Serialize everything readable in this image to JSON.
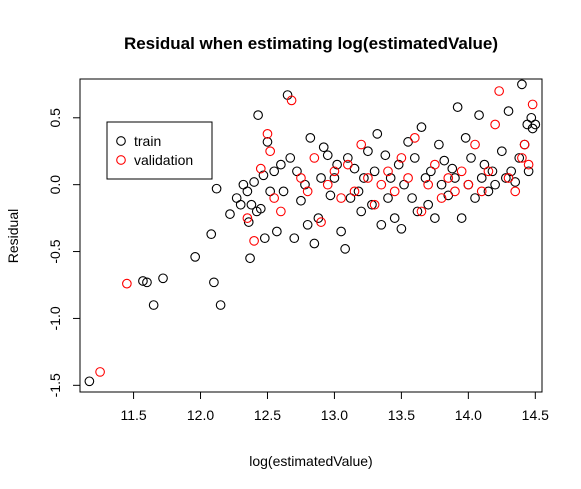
{
  "chart_data": {
    "type": "scatter",
    "title": "Residual when estimating log(estimatedValue)",
    "xlabel": "log(estimatedValue)",
    "ylabel": "Residual",
    "xlim": [
      11.1,
      14.55
    ],
    "ylim": [
      -1.55,
      0.79
    ],
    "xticks": [
      11.5,
      12.0,
      12.5,
      13.0,
      13.5,
      14.0,
      14.5
    ],
    "xtick_labels": [
      "11.5",
      "12.0",
      "12.5",
      "13.0",
      "13.5",
      "14.0",
      "14.5"
    ],
    "yticks": [
      -1.5,
      -1.0,
      -0.5,
      0.0,
      0.5
    ],
    "ytick_labels": [
      "-1.5",
      "-1.0",
      "-0.5",
      "0.0",
      "0.5"
    ],
    "grid": false,
    "legend": {
      "position": "top-left",
      "entries": [
        "train",
        "validation"
      ]
    },
    "series": [
      {
        "name": "train",
        "color": "#000000",
        "points": [
          [
            11.17,
            -1.47
          ],
          [
            11.57,
            -0.72
          ],
          [
            11.6,
            -0.73
          ],
          [
            11.65,
            -0.9
          ],
          [
            11.72,
            -0.7
          ],
          [
            11.96,
            -0.54
          ],
          [
            12.08,
            -0.37
          ],
          [
            12.1,
            -0.73
          ],
          [
            12.12,
            -0.03
          ],
          [
            12.15,
            -0.9
          ],
          [
            12.22,
            -0.22
          ],
          [
            12.27,
            -0.1
          ],
          [
            12.3,
            -0.15
          ],
          [
            12.32,
            0.0
          ],
          [
            12.35,
            -0.05
          ],
          [
            12.36,
            -0.28
          ],
          [
            12.37,
            -0.55
          ],
          [
            12.38,
            -0.15
          ],
          [
            12.4,
            0.02
          ],
          [
            12.42,
            -0.2
          ],
          [
            12.43,
            0.52
          ],
          [
            12.45,
            -0.18
          ],
          [
            12.47,
            0.07
          ],
          [
            12.48,
            -0.4
          ],
          [
            12.5,
            0.32
          ],
          [
            12.52,
            -0.05
          ],
          [
            12.55,
            0.1
          ],
          [
            12.57,
            -0.35
          ],
          [
            12.6,
            0.15
          ],
          [
            12.62,
            -0.05
          ],
          [
            12.65,
            0.67
          ],
          [
            12.67,
            0.2
          ],
          [
            12.7,
            -0.4
          ],
          [
            12.72,
            0.1
          ],
          [
            12.75,
            -0.12
          ],
          [
            12.78,
            0.0
          ],
          [
            12.8,
            -0.3
          ],
          [
            12.82,
            0.35
          ],
          [
            12.85,
            -0.44
          ],
          [
            12.88,
            -0.25
          ],
          [
            12.9,
            0.05
          ],
          [
            12.92,
            0.28
          ],
          [
            12.95,
            0.22
          ],
          [
            12.97,
            -0.08
          ],
          [
            13.0,
            0.05
          ],
          [
            13.02,
            0.15
          ],
          [
            13.05,
            -0.35
          ],
          [
            13.08,
            -0.48
          ],
          [
            13.1,
            0.2
          ],
          [
            13.12,
            -0.1
          ],
          [
            13.15,
            0.12
          ],
          [
            13.18,
            -0.05
          ],
          [
            13.2,
            -0.2
          ],
          [
            13.22,
            0.05
          ],
          [
            13.25,
            0.25
          ],
          [
            13.28,
            -0.15
          ],
          [
            13.3,
            0.1
          ],
          [
            13.32,
            0.38
          ],
          [
            13.35,
            -0.3
          ],
          [
            13.38,
            0.22
          ],
          [
            13.4,
            -0.1
          ],
          [
            13.42,
            0.05
          ],
          [
            13.45,
            -0.25
          ],
          [
            13.48,
            0.15
          ],
          [
            13.5,
            -0.33
          ],
          [
            13.52,
            0.0
          ],
          [
            13.55,
            0.32
          ],
          [
            13.58,
            -0.1
          ],
          [
            13.6,
            0.2
          ],
          [
            13.62,
            -0.2
          ],
          [
            13.65,
            0.43
          ],
          [
            13.68,
            0.05
          ],
          [
            13.7,
            -0.15
          ],
          [
            13.72,
            0.1
          ],
          [
            13.75,
            -0.25
          ],
          [
            13.78,
            0.3
          ],
          [
            13.8,
            0.0
          ],
          [
            13.82,
            0.18
          ],
          [
            13.85,
            -0.08
          ],
          [
            13.88,
            0.12
          ],
          [
            13.9,
            0.05
          ],
          [
            13.92,
            0.58
          ],
          [
            13.95,
            -0.25
          ],
          [
            13.98,
            0.35
          ],
          [
            14.0,
            0.0
          ],
          [
            14.02,
            0.2
          ],
          [
            14.05,
            -0.1
          ],
          [
            14.08,
            0.52
          ],
          [
            14.1,
            0.05
          ],
          [
            14.12,
            0.15
          ],
          [
            14.15,
            -0.05
          ],
          [
            14.18,
            0.1
          ],
          [
            14.2,
            0.0
          ],
          [
            14.25,
            0.25
          ],
          [
            14.28,
            0.05
          ],
          [
            14.3,
            0.55
          ],
          [
            14.32,
            0.1
          ],
          [
            14.35,
            0.02
          ],
          [
            14.38,
            0.2
          ],
          [
            14.4,
            0.75
          ],
          [
            14.42,
            0.3
          ],
          [
            14.44,
            0.45
          ],
          [
            14.45,
            0.1
          ],
          [
            14.47,
            0.5
          ],
          [
            14.48,
            0.42
          ],
          [
            14.5,
            0.45
          ]
        ]
      },
      {
        "name": "validation",
        "color": "#ff0000",
        "points": [
          [
            11.25,
            -1.4
          ],
          [
            11.45,
            -0.74
          ],
          [
            12.35,
            -0.25
          ],
          [
            12.4,
            -0.42
          ],
          [
            12.45,
            0.12
          ],
          [
            12.5,
            0.38
          ],
          [
            12.52,
            0.25
          ],
          [
            12.55,
            -0.1
          ],
          [
            12.6,
            -0.2
          ],
          [
            12.68,
            0.63
          ],
          [
            12.75,
            0.05
          ],
          [
            12.8,
            -0.05
          ],
          [
            12.85,
            0.2
          ],
          [
            12.9,
            -0.28
          ],
          [
            12.95,
            0.0
          ],
          [
            13.0,
            0.1
          ],
          [
            13.05,
            -0.1
          ],
          [
            13.1,
            0.15
          ],
          [
            13.15,
            -0.05
          ],
          [
            13.2,
            0.3
          ],
          [
            13.25,
            0.05
          ],
          [
            13.3,
            -0.15
          ],
          [
            13.35,
            0.0
          ],
          [
            13.4,
            0.1
          ],
          [
            13.45,
            -0.05
          ],
          [
            13.5,
            0.2
          ],
          [
            13.55,
            0.05
          ],
          [
            13.6,
            0.35
          ],
          [
            13.65,
            -0.2
          ],
          [
            13.7,
            0.0
          ],
          [
            13.75,
            0.15
          ],
          [
            13.8,
            -0.1
          ],
          [
            13.85,
            0.05
          ],
          [
            13.9,
            -0.05
          ],
          [
            13.95,
            0.1
          ],
          [
            14.0,
            0.0
          ],
          [
            14.05,
            0.3
          ],
          [
            14.1,
            -0.05
          ],
          [
            14.15,
            0.1
          ],
          [
            14.2,
            0.45
          ],
          [
            14.23,
            0.7
          ],
          [
            14.3,
            0.05
          ],
          [
            14.35,
            -0.05
          ],
          [
            14.4,
            0.2
          ],
          [
            14.42,
            0.3
          ],
          [
            14.45,
            0.15
          ],
          [
            14.48,
            0.6
          ]
        ]
      }
    ]
  }
}
